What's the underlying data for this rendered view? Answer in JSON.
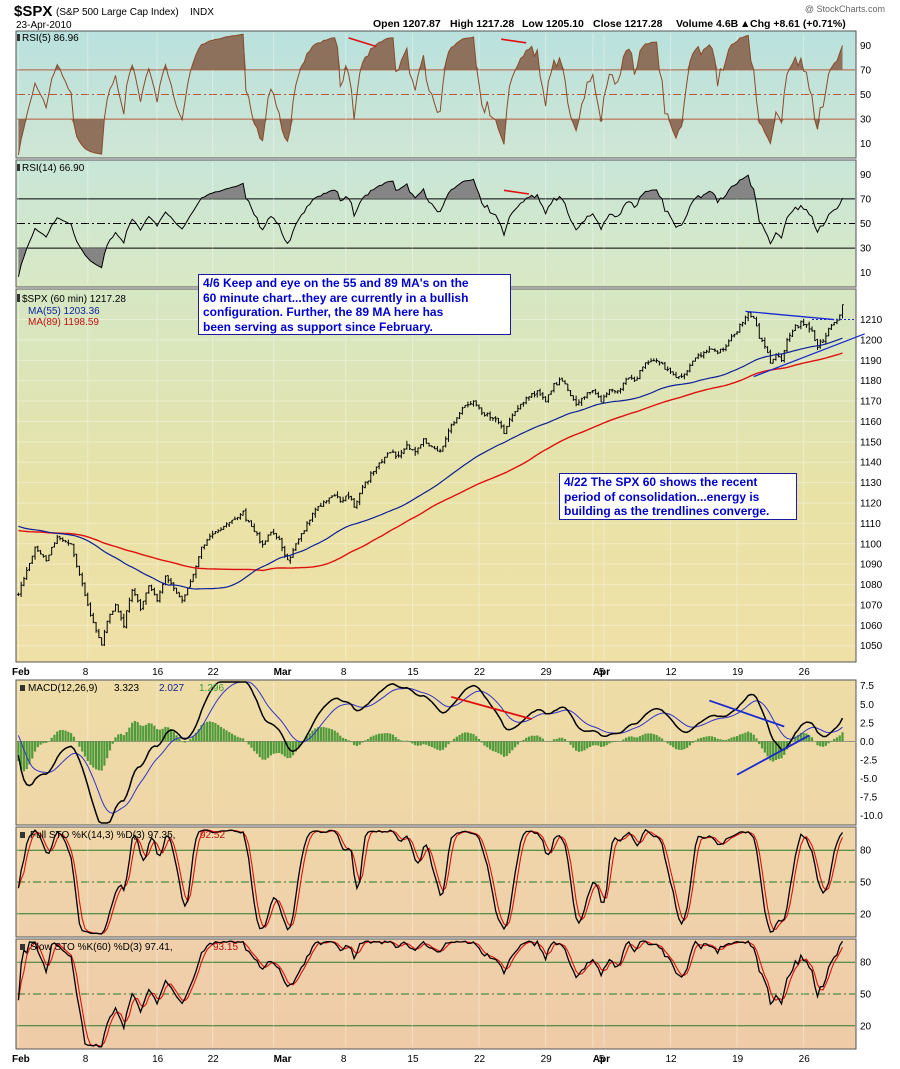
{
  "header": {
    "symbol": "$SPX",
    "name": "(S&P 500 Large Cap Index)",
    "exchange": "INDX",
    "date": "23-Apr-2010",
    "copyright": "@ StockCharts.com",
    "open": "Open 1207.87",
    "high": "High 1217.28",
    "low": "Low 1205.10",
    "close": "Close 1217.28",
    "volume": "Volume 4.6B",
    "change": "Chg +8.61 (+0.71%)",
    "change_arrow": "▲"
  },
  "annotations": {
    "note1": [
      "4/6 Keep and eye on the 55 and 89 MA's on the",
      "60 minute chart...they are currently in a bullish",
      "configuration.  Further, the 89 MA here has",
      "been serving as support since February."
    ],
    "note2": [
      "4/22 The SPX 60 shows the recent",
      "period of consolidation...energy is",
      "building as the trendlines converge."
    ]
  },
  "colors": {
    "panel_top": "#bfe3e0",
    "panel_mid": "#e6e2a0",
    "panel_bottom": "#efcfa8",
    "rsi5_fill": "#8b6a55",
    "rsi14_fill": "#808080",
    "price_bar": "#000000",
    "ma55": "#0d1f9a",
    "ma89": "#e01010",
    "macd_hist": "#4f9a3a",
    "trendline": "#1a2ad0",
    "divergence": "#e01010"
  },
  "chart_data": [
    {
      "type": "line",
      "panel": "rsi5",
      "legend": "RSI(5) 86.96",
      "ylim": [
        0,
        100
      ],
      "yticks": [
        10,
        30,
        50,
        70,
        90
      ],
      "levels": [
        30,
        50,
        70
      ],
      "last": 86.96
    },
    {
      "type": "line",
      "panel": "rsi14",
      "legend": "RSI(14) 66.90",
      "ylim": [
        0,
        100
      ],
      "yticks": [
        10,
        30,
        50,
        70,
        90
      ],
      "levels": [
        30,
        50,
        70
      ],
      "last": 66.9
    },
    {
      "type": "line",
      "panel": "price",
      "series": [
        {
          "name": "$SPX (60 min) 1217.28",
          "last": 1217.28
        },
        {
          "name": "MA(55) 1203.36",
          "last": 1203.36
        },
        {
          "name": "MA(89) 1198.59",
          "last": 1198.59
        }
      ],
      "ylim": [
        1043,
        1224
      ],
      "yticks": [
        1050,
        1060,
        1070,
        1080,
        1090,
        1100,
        1110,
        1120,
        1130,
        1140,
        1150,
        1160,
        1170,
        1180,
        1190,
        1200,
        1210
      ],
      "price_anchors": [
        [
          0,
          1075
        ],
        [
          6,
          1098
        ],
        [
          10,
          1092
        ],
        [
          14,
          1103
        ],
        [
          19,
          1100
        ],
        [
          22,
          1085
        ],
        [
          26,
          1065
        ],
        [
          30,
          1050
        ],
        [
          32,
          1062
        ],
        [
          35,
          1070
        ],
        [
          38,
          1060
        ],
        [
          41,
          1078
        ],
        [
          44,
          1068
        ],
        [
          47,
          1080
        ],
        [
          50,
          1072
        ],
        [
          53,
          1085
        ],
        [
          56,
          1078
        ],
        [
          59,
          1072
        ],
        [
          62,
          1081
        ],
        [
          66,
          1098
        ],
        [
          70,
          1105
        ],
        [
          74,
          1108
        ],
        [
          78,
          1112
        ],
        [
          81,
          1115
        ],
        [
          84,
          1108
        ],
        [
          88,
          1100
        ],
        [
          91,
          1106
        ],
        [
          94,
          1102
        ],
        [
          97,
          1091
        ],
        [
          101,
          1102
        ],
        [
          104,
          1110
        ],
        [
          107,
          1116
        ],
        [
          110,
          1120
        ],
        [
          113,
          1124
        ],
        [
          116,
          1121
        ],
        [
          119,
          1124
        ],
        [
          121,
          1119
        ],
        [
          124,
          1128
        ],
        [
          127,
          1134
        ],
        [
          130,
          1140
        ],
        [
          134,
          1145
        ],
        [
          137,
          1143
        ],
        [
          140,
          1148
        ],
        [
          143,
          1145
        ],
        [
          146,
          1150
        ],
        [
          149,
          1148
        ],
        [
          152,
          1145
        ],
        [
          155,
          1155
        ],
        [
          158,
          1162
        ],
        [
          161,
          1168
        ],
        [
          164,
          1170
        ],
        [
          167,
          1165
        ],
        [
          170,
          1162
        ],
        [
          173,
          1160
        ],
        [
          175,
          1155
        ],
        [
          178,
          1163
        ],
        [
          181,
          1168
        ],
        [
          184,
          1172
        ],
        [
          187,
          1175
        ],
        [
          190,
          1170
        ],
        [
          193,
          1178
        ],
        [
          196,
          1180
        ],
        [
          198,
          1175
        ],
        [
          201,
          1168
        ],
        [
          204,
          1172
        ],
        [
          207,
          1175
        ],
        [
          210,
          1170
        ],
        [
          213,
          1176
        ],
        [
          216,
          1174
        ],
        [
          219,
          1181
        ],
        [
          222,
          1180
        ],
        [
          225,
          1187
        ],
        [
          228,
          1190
        ],
        [
          231,
          1188
        ],
        [
          234,
          1186
        ],
        [
          237,
          1182
        ],
        [
          240,
          1183
        ],
        [
          243,
          1190
        ],
        [
          246,
          1193
        ],
        [
          249,
          1196
        ],
        [
          252,
          1194
        ],
        [
          255,
          1197
        ],
        [
          258,
          1203
        ],
        [
          261,
          1210
        ],
        [
          263,
          1213
        ],
        [
          265,
          1211
        ],
        [
          267,
          1202
        ],
        [
          269,
          1197
        ],
        [
          271,
          1189
        ],
        [
          273,
          1193
        ],
        [
          275,
          1190
        ],
        [
          277,
          1200
        ],
        [
          279,
          1205
        ],
        [
          282,
          1208
        ],
        [
          284,
          1207
        ],
        [
          286,
          1204
        ],
        [
          288,
          1197
        ],
        [
          290,
          1200
        ],
        [
          292,
          1206
        ],
        [
          295,
          1210
        ],
        [
          297,
          1215
        ]
      ],
      "triangle_upper": [
        [
          262,
          1214
        ],
        [
          294,
          1210
        ]
      ],
      "triangle_lower": [
        [
          265,
          1182
        ],
        [
          305,
          1203
        ]
      ],
      "dotted_level": 1210
    },
    {
      "type": "line",
      "panel": "macd",
      "legend_macd": "MACD(12,26,9)",
      "macd_value": "3.323",
      "signal_value": "2.027",
      "hist_value": "1.296",
      "ylim": [
        -11,
        8
      ],
      "yticks": [
        -10.0,
        -7.5,
        -5.0,
        -2.5,
        0.0,
        2.5,
        5.0,
        7.5
      ],
      "divergence_line": [
        [
          156,
          6.0
        ],
        [
          185,
          3.0
        ]
      ],
      "trend_upper": [
        [
          249,
          5.5
        ],
        [
          276,
          2.0
        ]
      ],
      "trend_lower": [
        [
          259,
          -4.5
        ],
        [
          285,
          0.8
        ]
      ]
    },
    {
      "type": "line",
      "panel": "full_sto",
      "legend_k": "Full STO %K(14,3) %D(3) 97.35,",
      "legend_d": "92.52",
      "ylim": [
        0,
        100
      ],
      "yticks": [
        20,
        50,
        80
      ],
      "levels": [
        20,
        50,
        80
      ]
    },
    {
      "type": "line",
      "panel": "slow_sto",
      "legend_k": "Slow STO %K(60) %D(3) 97.41,",
      "legend_d": "93.15",
      "ylim": [
        0,
        100
      ],
      "yticks": [
        20,
        50,
        80
      ],
      "levels": [
        20,
        50,
        80
      ]
    }
  ],
  "x_axis": {
    "n_bars": 298,
    "plot_bars": 302,
    "ticks": [
      {
        "label": "Feb",
        "bar": 0,
        "bold": true
      },
      {
        "label": "8",
        "bar": 25
      },
      {
        "label": "16",
        "bar": 50
      },
      {
        "label": "22",
        "bar": 70
      },
      {
        "label": "Mar",
        "bar": 92,
        "bold": true
      },
      {
        "label": "8",
        "bar": 118
      },
      {
        "label": "15",
        "bar": 142
      },
      {
        "label": "22",
        "bar": 166
      },
      {
        "label": "29",
        "bar": 190
      },
      {
        "label": "Apr",
        "bar": 207,
        "bold": true
      },
      {
        "label": "5",
        "bar": 211
      },
      {
        "label": "12",
        "bar": 235
      },
      {
        "label": "19",
        "bar": 259
      },
      {
        "label": "26",
        "bar": 283
      }
    ]
  }
}
